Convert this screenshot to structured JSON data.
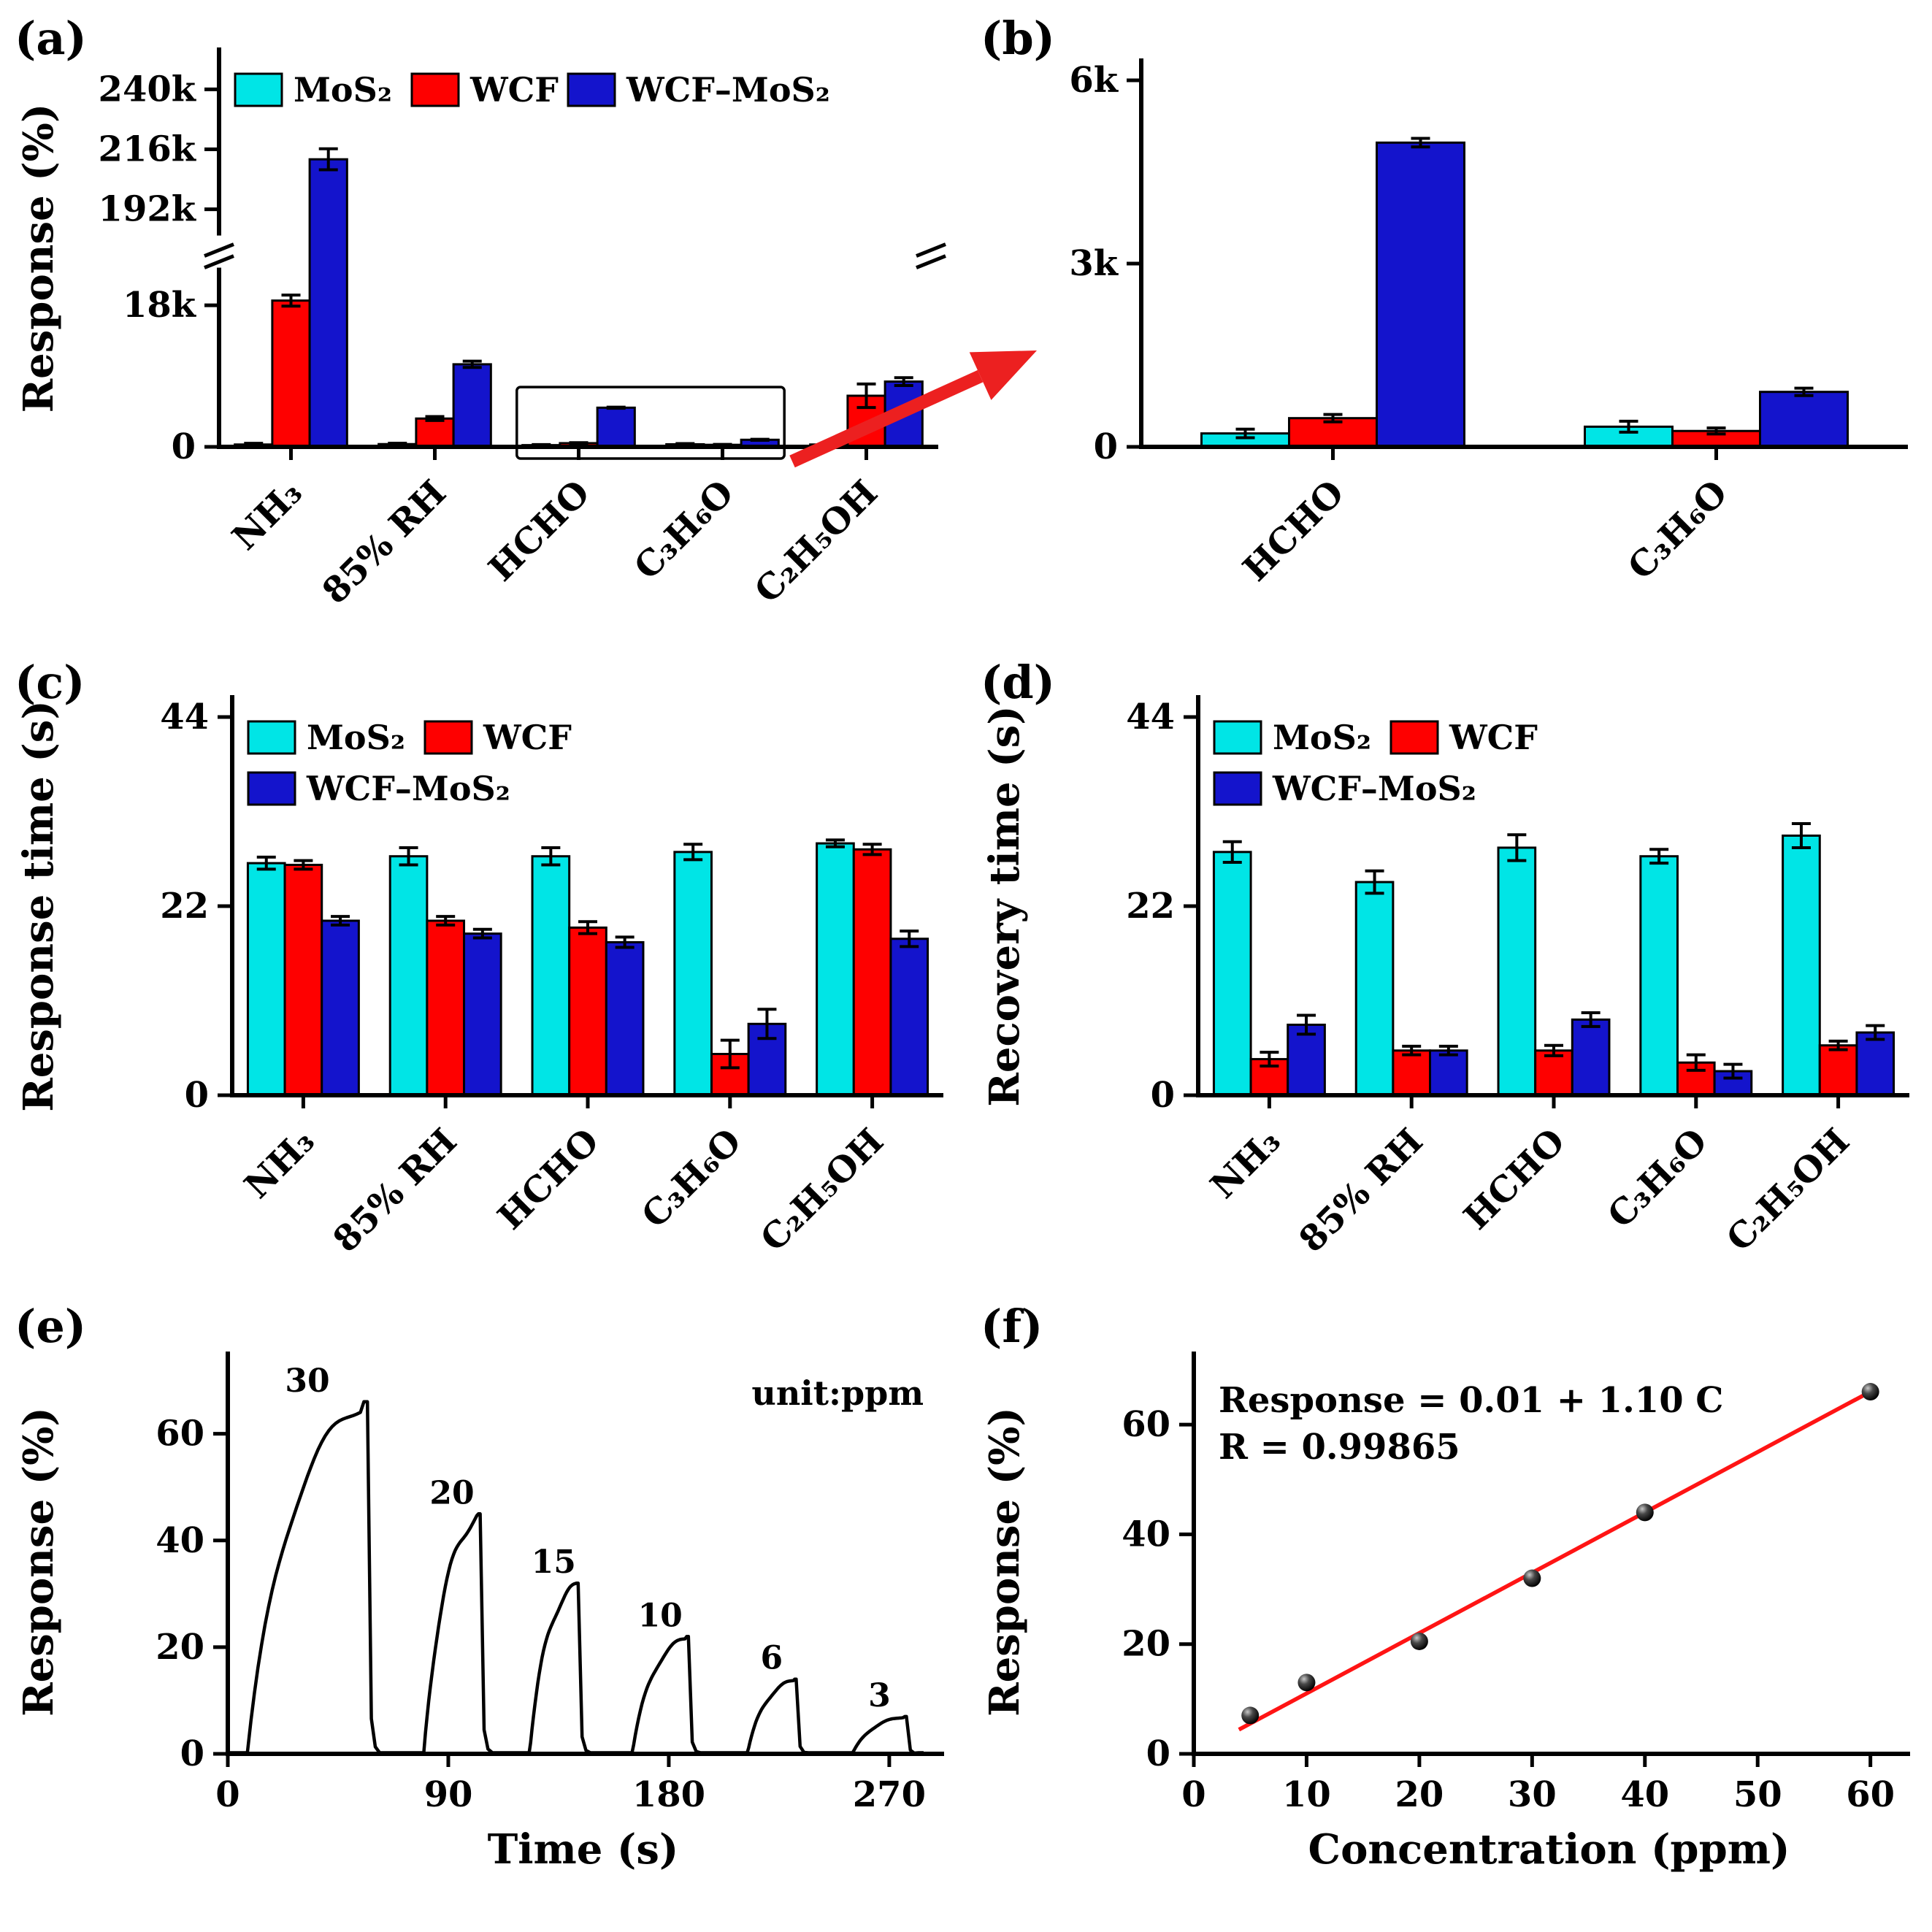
{
  "figure": {
    "background": "#ffffff",
    "colors": {
      "mos2": "#00e5e6",
      "wcf": "#fe0000",
      "wcf_mos2": "#1414cc",
      "arrow": "#ec2020",
      "fit_line": "#ff1414",
      "curve": "#000000"
    },
    "arrow": {
      "from": [
        1085,
        632
      ],
      "to": [
        1420,
        480
      ],
      "color": "#ec2020"
    }
  },
  "chart_data": [
    {
      "id": "a",
      "panel_label": "(a)",
      "type": "bar",
      "ylabel": "Response (%)",
      "categories": [
        "NH₃",
        "85% RH",
        "HCHO",
        "C₃H₆O",
        "C₂H₅OH"
      ],
      "series": [
        {
          "name": "MoS₂",
          "color": "#00e5e6",
          "values": [
            300,
            350,
            220,
            330,
            300
          ],
          "errors": [
            150,
            120,
            70,
            90,
            120
          ]
        },
        {
          "name": "WCF",
          "color": "#fe0000",
          "values": [
            18600,
            3600,
            470,
            260,
            6500
          ],
          "errors": [
            700,
            250,
            60,
            50,
            1500
          ]
        },
        {
          "name": "WCF–MoS₂",
          "color": "#1414cc",
          "values": [
            212000,
            10500,
            4980,
            900,
            8300
          ],
          "errors": [
            4200,
            400,
            70,
            60,
            500
          ]
        }
      ],
      "axis_break": {
        "lower_max": 24000,
        "upper_min": 180000,
        "upper_max": 248000,
        "lower_frac": 0.5,
        "gap_frac": 0.05
      },
      "yticks": [
        {
          "v": 0,
          "label": "0"
        },
        {
          "v": 18000,
          "label": "18k"
        },
        {
          "v": 192000,
          "label": "192k"
        },
        {
          "v": 216000,
          "label": "216k"
        },
        {
          "v": 240000,
          "label": "240k"
        }
      ],
      "legend": {
        "rows": [
          [
            "MoS₂",
            "WCF",
            "WCF–MoS₂"
          ]
        ]
      },
      "annotation_box": {
        "cat_from": 2,
        "cat_to": 3,
        "v_top": 7600
      }
    },
    {
      "id": "b",
      "panel_label": "(b)",
      "type": "bar",
      "categories": [
        "HCHO",
        "C₃H₆O"
      ],
      "series": [
        {
          "name": "MoS₂",
          "color": "#00e5e6",
          "values": [
            220,
            330
          ],
          "errors": [
            70,
            90
          ]
        },
        {
          "name": "WCF",
          "color": "#fe0000",
          "values": [
            470,
            260
          ],
          "errors": [
            60,
            50
          ]
        },
        {
          "name": "WCF–MoS₂",
          "color": "#1414cc",
          "values": [
            4980,
            900
          ],
          "errors": [
            70,
            60
          ]
        }
      ],
      "ylim": [
        0,
        6000
      ],
      "yticks": [
        {
          "v": 0,
          "label": "0"
        },
        {
          "v": 3000,
          "label": "3k"
        },
        {
          "v": 6000,
          "label": "6k"
        }
      ]
    },
    {
      "id": "c",
      "panel_label": "(c)",
      "type": "bar",
      "ylabel": "Response time (s)",
      "categories": [
        "NH₃",
        "85% RH",
        "HCHO",
        "C₃H₆O",
        "C₂H₅OH"
      ],
      "series": [
        {
          "name": "MoS₂",
          "color": "#00e5e6",
          "values": [
            27.0,
            27.8,
            27.8,
            28.3,
            29.3
          ],
          "errors": [
            0.7,
            1.0,
            1.0,
            0.9,
            0.4
          ]
        },
        {
          "name": "WCF",
          "color": "#fe0000",
          "values": [
            26.8,
            20.3,
            19.5,
            4.8,
            28.6
          ],
          "errors": [
            0.5,
            0.5,
            0.7,
            1.6,
            0.6
          ]
        },
        {
          "name": "WCF–MoS₂",
          "color": "#1414cc",
          "values": [
            20.3,
            18.8,
            17.8,
            8.3,
            18.2
          ],
          "errors": [
            0.5,
            0.5,
            0.6,
            1.7,
            0.9
          ]
        }
      ],
      "ylim": [
        0,
        44
      ],
      "yticks": [
        {
          "v": 0,
          "label": "0"
        },
        {
          "v": 22,
          "label": "22"
        },
        {
          "v": 44,
          "label": "44"
        }
      ],
      "legend": {
        "rows": [
          [
            "MoS₂",
            "WCF"
          ],
          [
            "WCF–MoS₂"
          ]
        ]
      }
    },
    {
      "id": "d",
      "panel_label": "(d)",
      "type": "bar",
      "ylabel": "Recovery time (s)",
      "categories": [
        "NH₃",
        "85% RH",
        "HCHO",
        "C₃H₆O",
        "C₂H₅OH"
      ],
      "series": [
        {
          "name": "MoS₂",
          "color": "#00e5e6",
          "values": [
            28.3,
            24.8,
            28.8,
            27.8,
            30.2
          ],
          "errors": [
            1.2,
            1.3,
            1.5,
            0.8,
            1.4
          ]
        },
        {
          "name": "WCF",
          "color": "#fe0000",
          "values": [
            4.2,
            5.2,
            5.2,
            3.8,
            5.8
          ],
          "errors": [
            0.8,
            0.5,
            0.6,
            0.9,
            0.5
          ]
        },
        {
          "name": "WCF–MoS₂",
          "color": "#1414cc",
          "values": [
            8.2,
            5.2,
            8.8,
            2.8,
            7.3
          ],
          "errors": [
            1.1,
            0.5,
            0.8,
            0.8,
            0.8
          ]
        }
      ],
      "ylim": [
        0,
        44
      ],
      "yticks": [
        {
          "v": 0,
          "label": "0"
        },
        {
          "v": 22,
          "label": "22"
        },
        {
          "v": 44,
          "label": "44"
        }
      ],
      "legend": {
        "rows": [
          [
            "MoS₂",
            "WCF"
          ],
          [
            "WCF–MoS₂"
          ]
        ]
      }
    },
    {
      "id": "e",
      "panel_label": "(e)",
      "type": "line",
      "xlabel": "Time (s)",
      "ylabel": "Response (%)",
      "annotation": "unit:ppm",
      "xlim": [
        0,
        290
      ],
      "ylim": [
        0,
        72
      ],
      "xticks": [
        0,
        90,
        180,
        270
      ],
      "yticks": [
        0,
        20,
        40,
        60
      ],
      "line_color": "#000000",
      "pulses": [
        {
          "label": "30",
          "start": 8,
          "peak": 57,
          "value": 66
        },
        {
          "label": "20",
          "start": 80,
          "peak": 103,
          "value": 45
        },
        {
          "label": "15",
          "start": 123,
          "peak": 143,
          "value": 32
        },
        {
          "label": "10",
          "start": 165,
          "peak": 188,
          "value": 22
        },
        {
          "label": "6",
          "start": 212,
          "peak": 232,
          "value": 14
        },
        {
          "label": "3",
          "start": 255,
          "peak": 277,
          "value": 7
        }
      ]
    },
    {
      "id": "f",
      "panel_label": "(f)",
      "type": "scatter",
      "xlabel": "Concentration (ppm)",
      "ylabel": "Response (%)",
      "xlim": [
        0,
        63
      ],
      "ylim": [
        0,
        70
      ],
      "xticks": [
        0,
        10,
        20,
        30,
        40,
        50,
        60
      ],
      "yticks": [
        0,
        20,
        40,
        60
      ],
      "points": [
        [
          5,
          7
        ],
        [
          10,
          13
        ],
        [
          20,
          20.5
        ],
        [
          30,
          32
        ],
        [
          40,
          44
        ],
        [
          60,
          66
        ]
      ],
      "fit": {
        "intercept": 0.01,
        "slope": 1.1,
        "x_from": 4,
        "x_to": 60.5,
        "color": "#ff1414"
      },
      "equation_lines": [
        "Response = 0.01 + 1.10 C",
        "R = 0.99865"
      ]
    }
  ]
}
